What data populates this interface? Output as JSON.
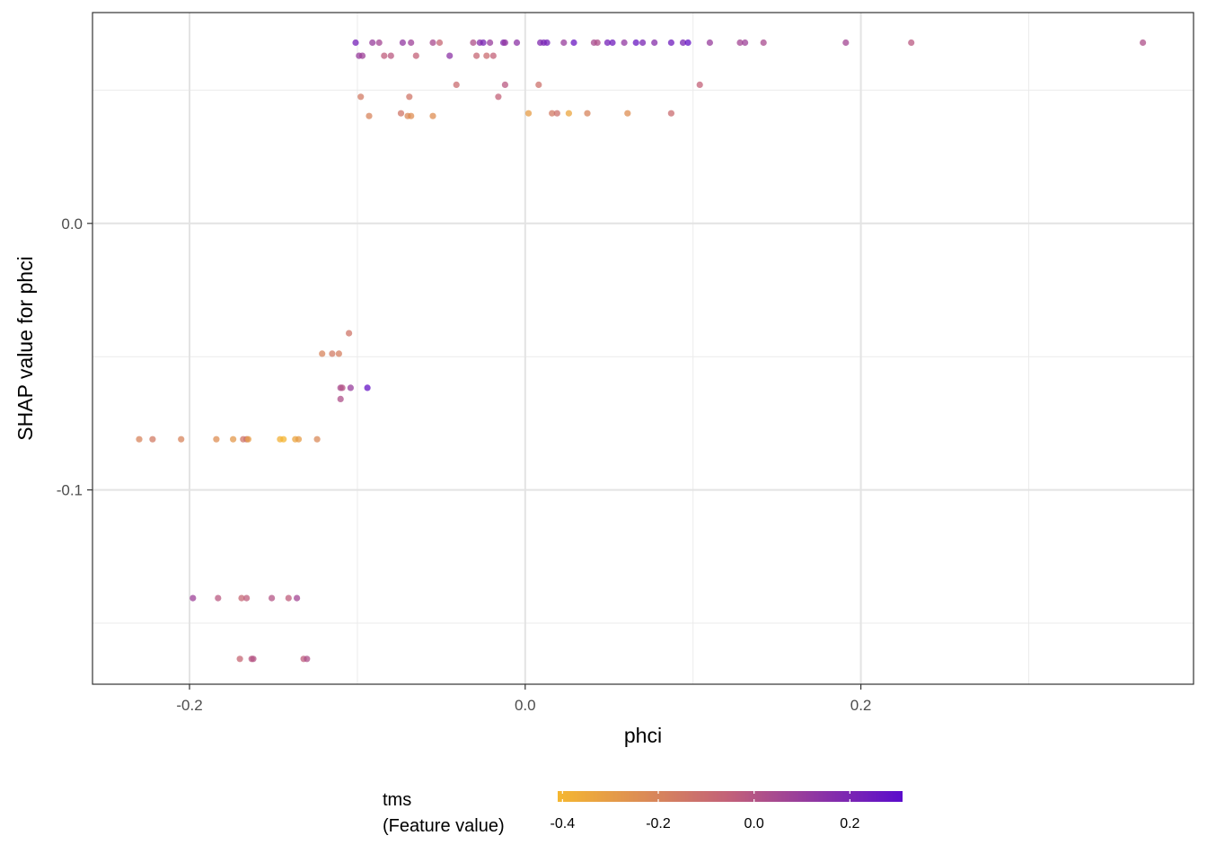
{
  "chart_data": {
    "type": "scatter",
    "title": "",
    "xlabel": "phci",
    "ylabel": "SHAP value for phci",
    "xlim": [
      -0.2578,
      0.3982
    ],
    "ylim": [
      -0.1729,
      0.0791
    ],
    "x_ticks": [
      -0.2,
      0.0,
      0.2
    ],
    "x_tick_labels": [
      "-0.2",
      "0.0",
      "0.2"
    ],
    "x_minor_ticks": [
      -0.1,
      0.1,
      0.3
    ],
    "y_ticks": [
      0.0,
      -0.1
    ],
    "y_tick_labels": [
      "0.0",
      "-0.1"
    ],
    "y_minor_ticks": [
      0.05,
      -0.05,
      -0.15
    ],
    "grid": true,
    "legend": {
      "placement": "bottom",
      "title_line1": "tms",
      "title_line2": "(Feature value)",
      "range": [
        -0.41,
        0.31
      ],
      "ticks": [
        -0.4,
        -0.2,
        0.0,
        0.2
      ],
      "tick_labels": [
        "-0.4",
        "-0.2",
        "0.0",
        "0.2"
      ],
      "color_low": "#f5b731",
      "color_mid": "#c2607a",
      "color_high": "#5b0ccc"
    },
    "point_opacity": 0.75,
    "points": [
      [
        -0.101,
        0.0678,
        0.22
      ],
      [
        -0.091,
        0.0678,
        0.1
      ],
      [
        -0.087,
        0.0678,
        0.06
      ],
      [
        -0.073,
        0.0678,
        0.12
      ],
      [
        -0.068,
        0.0678,
        0.08
      ],
      [
        -0.055,
        0.0678,
        0.04
      ],
      [
        -0.051,
        0.0678,
        -0.08
      ],
      [
        -0.031,
        0.0678,
        0.02
      ],
      [
        -0.027,
        0.0678,
        0.16
      ],
      [
        -0.025,
        0.0678,
        0.2
      ],
      [
        -0.021,
        0.0678,
        0.1
      ],
      [
        -0.013,
        0.0678,
        0.18
      ],
      [
        -0.012,
        0.0678,
        0.12
      ],
      [
        -0.005,
        0.0678,
        0.14
      ],
      [
        0.009,
        0.0678,
        0.18
      ],
      [
        0.011,
        0.0678,
        0.2
      ],
      [
        0.013,
        0.0678,
        0.22
      ],
      [
        0.023,
        0.0678,
        0.1
      ],
      [
        0.029,
        0.0678,
        0.26
      ],
      [
        0.041,
        0.0678,
        0.04
      ],
      [
        0.043,
        0.0678,
        0.02
      ],
      [
        0.049,
        0.0678,
        0.22
      ],
      [
        0.052,
        0.0678,
        0.24
      ],
      [
        0.059,
        0.0678,
        0.12
      ],
      [
        0.066,
        0.0678,
        0.26
      ],
      [
        0.07,
        0.0678,
        0.2
      ],
      [
        0.077,
        0.0678,
        0.16
      ],
      [
        0.087,
        0.0678,
        0.24
      ],
      [
        0.094,
        0.0678,
        0.2
      ],
      [
        0.097,
        0.0678,
        0.28
      ],
      [
        0.11,
        0.0678,
        0.1
      ],
      [
        0.128,
        0.0678,
        0.06
      ],
      [
        0.131,
        0.0678,
        0.08
      ],
      [
        0.142,
        0.0678,
        0.04
      ],
      [
        0.191,
        0.0678,
        0.06
      ],
      [
        0.23,
        0.0678,
        -0.02
      ],
      [
        0.368,
        0.0678,
        0.02
      ],
      [
        -0.099,
        0.0629,
        0.1
      ],
      [
        -0.097,
        0.0629,
        0.08
      ],
      [
        -0.084,
        0.0629,
        -0.04
      ],
      [
        -0.08,
        0.0629,
        -0.02
      ],
      [
        -0.065,
        0.0629,
        -0.06
      ],
      [
        -0.045,
        0.0629,
        0.14
      ],
      [
        -0.029,
        0.0629,
        -0.08
      ],
      [
        -0.023,
        0.0629,
        -0.1
      ],
      [
        -0.019,
        0.0629,
        -0.06
      ],
      [
        -0.098,
        0.0475,
        -0.16
      ],
      [
        -0.069,
        0.0475,
        -0.14
      ],
      [
        -0.041,
        0.052,
        -0.1
      ],
      [
        -0.016,
        0.0475,
        -0.06
      ],
      [
        -0.012,
        0.052,
        -0.02
      ],
      [
        0.008,
        0.052,
        -0.12
      ],
      [
        0.104,
        0.052,
        -0.06
      ],
      [
        -0.093,
        0.0403,
        -0.2
      ],
      [
        -0.074,
        0.0413,
        -0.14
      ],
      [
        -0.07,
        0.0403,
        -0.22
      ],
      [
        -0.068,
        0.0403,
        -0.24
      ],
      [
        -0.055,
        0.0403,
        -0.24
      ],
      [
        0.002,
        0.0413,
        -0.3
      ],
      [
        0.016,
        0.0413,
        -0.16
      ],
      [
        0.019,
        0.0413,
        -0.12
      ],
      [
        0.026,
        0.0413,
        -0.34
      ],
      [
        0.037,
        0.0413,
        -0.2
      ],
      [
        0.061,
        0.0413,
        -0.24
      ],
      [
        0.087,
        0.0413,
        -0.1
      ],
      [
        -0.105,
        -0.0412,
        -0.14
      ],
      [
        -0.121,
        -0.0489,
        -0.2
      ],
      [
        -0.115,
        -0.0489,
        -0.16
      ],
      [
        -0.111,
        -0.0489,
        -0.18
      ],
      [
        -0.11,
        -0.0617,
        0.04
      ],
      [
        -0.109,
        -0.0617,
        0.0
      ],
      [
        -0.104,
        -0.0617,
        0.1
      ],
      [
        -0.094,
        -0.0617,
        0.28
      ],
      [
        -0.11,
        -0.0659,
        0.02
      ],
      [
        -0.23,
        -0.081,
        -0.2
      ],
      [
        -0.222,
        -0.081,
        -0.16
      ],
      [
        -0.205,
        -0.081,
        -0.2
      ],
      [
        -0.184,
        -0.081,
        -0.24
      ],
      [
        -0.174,
        -0.081,
        -0.28
      ],
      [
        -0.168,
        -0.081,
        -0.14
      ],
      [
        -0.166,
        -0.081,
        -0.1
      ],
      [
        -0.165,
        -0.081,
        -0.3
      ],
      [
        -0.146,
        -0.081,
        -0.38
      ],
      [
        -0.144,
        -0.081,
        -0.4
      ],
      [
        -0.137,
        -0.081,
        -0.34
      ],
      [
        -0.135,
        -0.081,
        -0.3
      ],
      [
        -0.124,
        -0.081,
        -0.22
      ],
      [
        -0.198,
        -0.1406,
        0.08
      ],
      [
        -0.183,
        -0.1406,
        -0.02
      ],
      [
        -0.169,
        -0.1406,
        -0.08
      ],
      [
        -0.166,
        -0.1406,
        -0.04
      ],
      [
        -0.151,
        -0.1406,
        0.0
      ],
      [
        -0.141,
        -0.1406,
        -0.04
      ],
      [
        -0.136,
        -0.1406,
        0.06
      ],
      [
        -0.17,
        -0.1634,
        -0.08
      ],
      [
        -0.163,
        -0.1634,
        -0.02
      ],
      [
        -0.162,
        -0.1634,
        0.0
      ],
      [
        -0.132,
        -0.1634,
        -0.04
      ],
      [
        -0.13,
        -0.1634,
        0.02
      ]
    ]
  }
}
